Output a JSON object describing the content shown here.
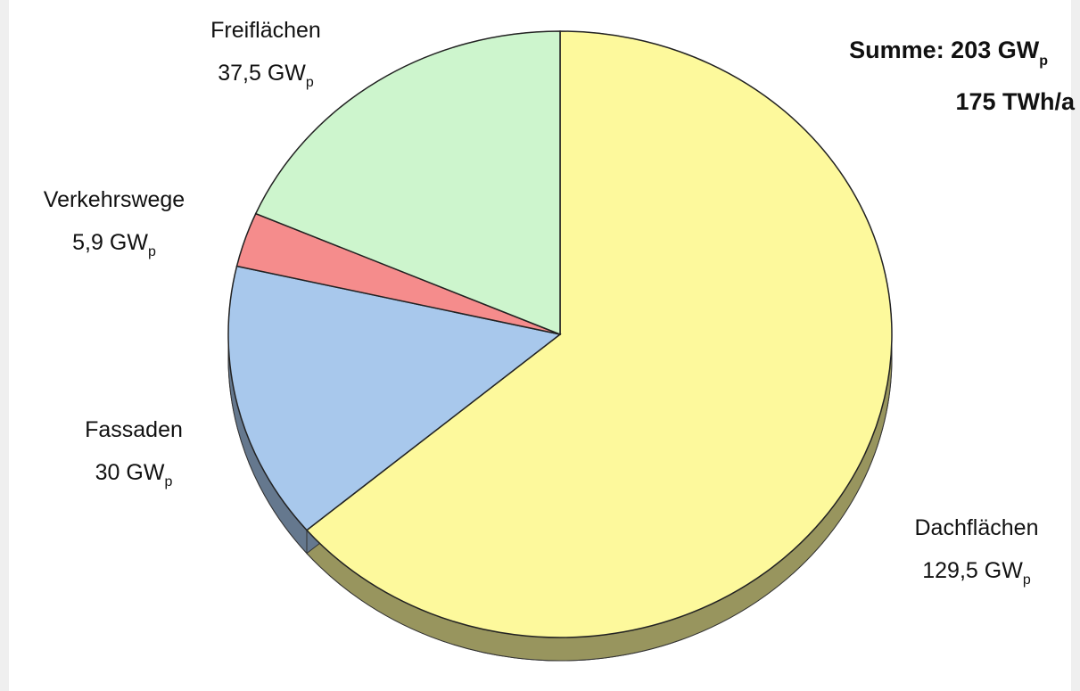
{
  "chart_data": {
    "type": "pie",
    "categories": [
      "Dachflächen",
      "Fassaden",
      "Verkehrswege",
      "Freiflächen"
    ],
    "values": [
      129.5,
      30,
      5.9,
      37.5
    ],
    "value_labels": [
      "129,5",
      "30",
      "5,9",
      "37,5"
    ],
    "unit": "GW",
    "unit_subscript": "p",
    "colors": [
      "#fdf99c",
      "#a8c8ec",
      "#f58c8c",
      "#cdf5cd"
    ],
    "annotations": [
      "Summe: 203 GW",
      "175 TWh/a"
    ]
  }
}
